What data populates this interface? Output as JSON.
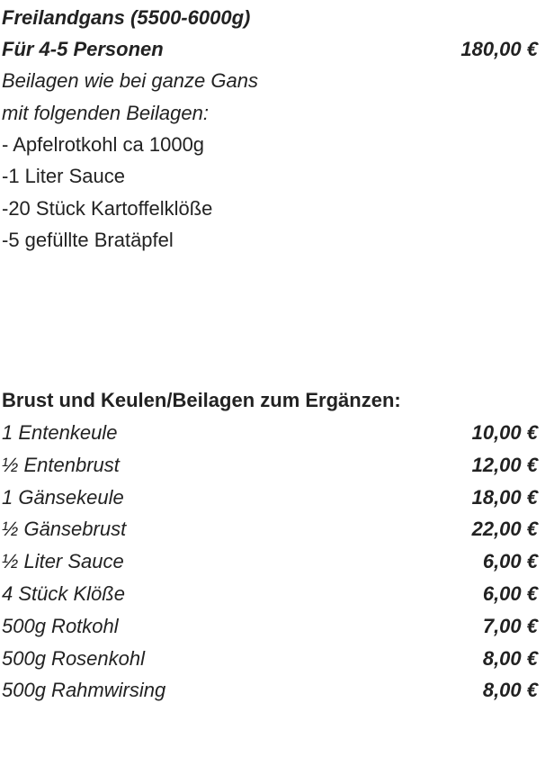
{
  "offer": {
    "title": "Freilandgans (5500-6000g)",
    "subtitle": "Für 4-5 Personen",
    "price": "180,00 €",
    "description": [
      "Beilagen wie bei ganze Gans",
      "mit folgenden Beilagen:"
    ],
    "sides": [
      "- Apfelrotkohl ca 1000g",
      "-1 Liter Sauce",
      "-20 Stück Kartoffelklöße",
      "-5 gefüllte Bratäpfel"
    ]
  },
  "extras": {
    "heading": "Brust und Keulen/Beilagen zum Ergänzen:",
    "items": [
      {
        "name": "1 Entenkeule",
        "price": "10,00 €"
      },
      {
        "name": "½ Entenbrust",
        "price": "12,00 €"
      },
      {
        "name": "1 Gänsekeule",
        "price": "18,00 €"
      },
      {
        "name": "½ Gänsebrust",
        "price": "22,00 €"
      },
      {
        "name": "½ Liter Sauce",
        "price": "6,00 €"
      },
      {
        "name": "4 Stück Klöße",
        "price": "6,00 €"
      },
      {
        "name": "500g Rotkohl",
        "price": "7,00 €"
      },
      {
        "name": "500g Rosenkohl",
        "price": "8,00 €"
      },
      {
        "name": "500g Rahmwirsing",
        "price": "8,00 €"
      }
    ]
  }
}
